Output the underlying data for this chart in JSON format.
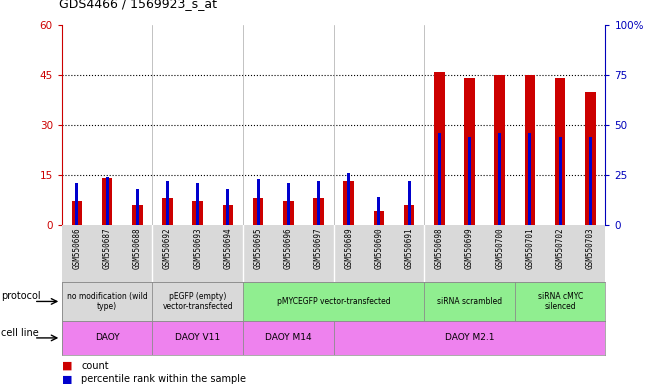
{
  "title": "GDS4466 / 1569923_s_at",
  "samples": [
    "GSM550686",
    "GSM550687",
    "GSM550688",
    "GSM550692",
    "GSM550693",
    "GSM550694",
    "GSM550695",
    "GSM550696",
    "GSM550697",
    "GSM550689",
    "GSM550690",
    "GSM550691",
    "GSM550698",
    "GSM550699",
    "GSM550700",
    "GSM550701",
    "GSM550702",
    "GSM550703"
  ],
  "counts": [
    7,
    14,
    6,
    8,
    7,
    6,
    8,
    7,
    8,
    13,
    4,
    6,
    46,
    44,
    45,
    45,
    44,
    40
  ],
  "percentiles": [
    21,
    24,
    18,
    22,
    21,
    18,
    23,
    21,
    22,
    26,
    14,
    22,
    46,
    44,
    46,
    46,
    44,
    44
  ],
  "ylim_left": [
    0,
    60
  ],
  "ylim_right": [
    0,
    100
  ],
  "yticks_left": [
    0,
    15,
    30,
    45,
    60
  ],
  "yticks_right": [
    0,
    25,
    50,
    75,
    100
  ],
  "bar_color_red": "#cc0000",
  "bar_color_blue": "#0000cc",
  "protocol_groups": [
    {
      "label": "no modification (wild\ntype)",
      "start": 0,
      "end": 3,
      "color": "#d9d9d9"
    },
    {
      "label": "pEGFP (empty)\nvector-transfected",
      "start": 3,
      "end": 6,
      "color": "#d9d9d9"
    },
    {
      "label": "pMYCEGFP vector-transfected",
      "start": 6,
      "end": 12,
      "color": "#90ee90"
    },
    {
      "label": "siRNA scrambled",
      "start": 12,
      "end": 15,
      "color": "#90ee90"
    },
    {
      "label": "siRNA cMYC\nsilenced",
      "start": 15,
      "end": 18,
      "color": "#90ee90"
    }
  ],
  "cellline_groups": [
    {
      "label": "DAOY",
      "start": 0,
      "end": 3,
      "color": "#ee82ee"
    },
    {
      "label": "DAOY V11",
      "start": 3,
      "end": 6,
      "color": "#ee82ee"
    },
    {
      "label": "DAOY M14",
      "start": 6,
      "end": 9,
      "color": "#ee82ee"
    },
    {
      "label": "DAOY M2.1",
      "start": 9,
      "end": 18,
      "color": "#ee82ee"
    }
  ],
  "legend_count_color": "#cc0000",
  "legend_pct_color": "#0000cc",
  "left_axis_color": "#cc0000",
  "right_axis_color": "#0000bb",
  "group_separators": [
    2.5,
    5.5,
    8.5,
    11.5
  ]
}
